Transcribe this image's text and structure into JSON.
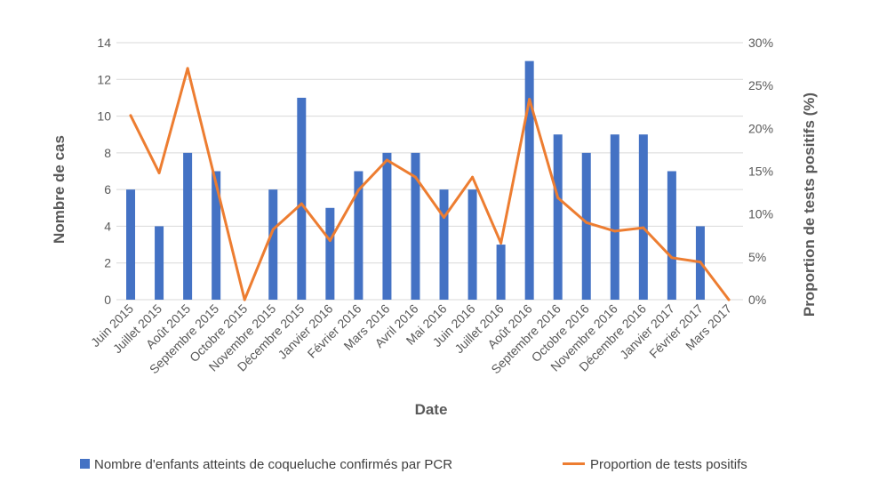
{
  "chart_data": {
    "type": "bar",
    "categories": [
      "Juin 2015",
      "Juillet 2015",
      "Août 2015",
      "Septembre 2015",
      "Octobre 2015",
      "Novembre 2015",
      "Décembre 2015",
      "Janvier 2016",
      "Février 2016",
      "Mars 2016",
      "Avril 2016",
      "Mai 2016",
      "Juin 2016",
      "Juillet 2016",
      "Août 2016",
      "Septembre 2016",
      "Octobre 2016",
      "Novembre 2016",
      "Décembre 2016",
      "Janvier 2017",
      "Février 2017",
      "Mars 2017"
    ],
    "series": [
      {
        "name": "Nombre d'enfants atteints de coqueluche confirmés par PCR",
        "type": "bar",
        "axis": "left",
        "color": "#4472C4",
        "values": [
          6,
          4,
          8,
          7,
          0,
          6,
          11,
          5,
          7,
          8,
          8,
          6,
          6,
          3,
          13,
          9,
          8,
          9,
          9,
          7,
          4,
          0
        ]
      },
      {
        "name": "Proportion de tests positifs",
        "type": "line",
        "axis": "right",
        "unit": "%",
        "color": "#ED7D31",
        "values": [
          21.5,
          14.8,
          27.0,
          13.5,
          0,
          8.2,
          11.2,
          6.9,
          12.8,
          16.3,
          14.3,
          9.6,
          14.3,
          6.6,
          23.4,
          11.9,
          9.0,
          8.0,
          8.4,
          4.9,
          4.4,
          0
        ]
      }
    ],
    "xlabel": "Date",
    "ylabel": "Nombre de cas",
    "y2label": "Proportion de tests positifs (%)",
    "ylim": [
      0,
      14
    ],
    "yticks": [
      "0",
      "2",
      "4",
      "6",
      "8",
      "10",
      "12",
      "14"
    ],
    "y2lim": [
      0,
      30
    ],
    "y2ticks": [
      "0%",
      "5%",
      "10%",
      "15%",
      "20%",
      "25%",
      "30%"
    ],
    "grid": true,
    "legend_position": "bottom"
  }
}
